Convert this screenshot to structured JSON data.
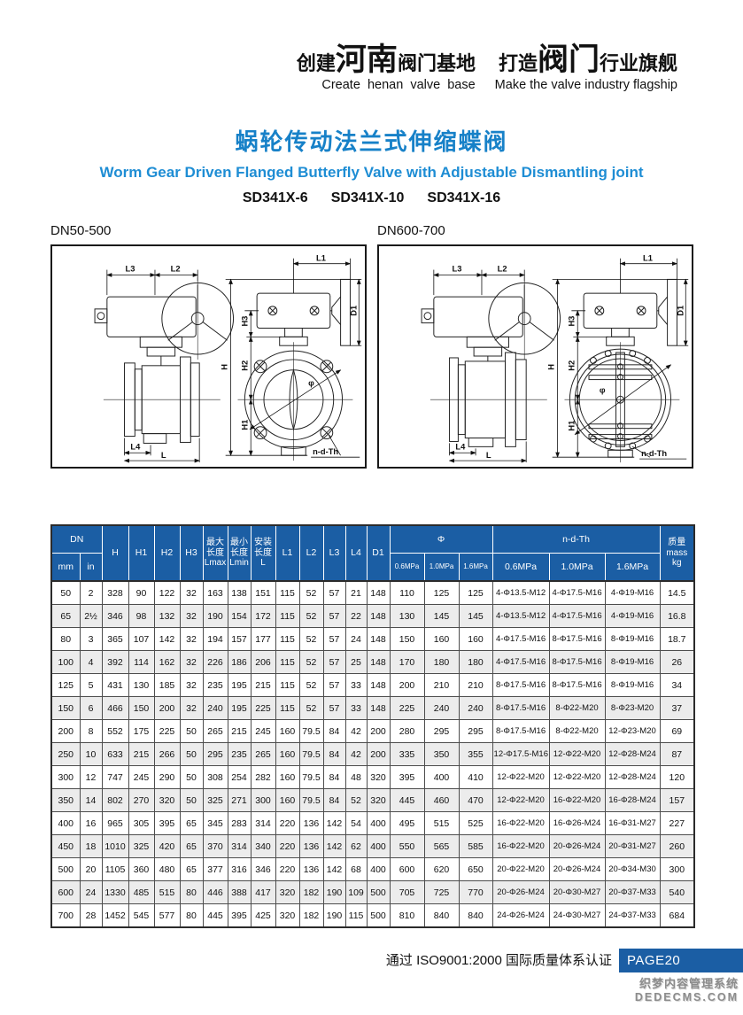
{
  "header": {
    "slogan": {
      "p1": "创建",
      "p2": "河南",
      "p3": "阀门基地",
      "p4": "打造",
      "p5": "阀门",
      "p6": "行业旗舰"
    },
    "slogan_en_left": "Create  henan  valve  base",
    "slogan_en_right": "Make the valve industry flagship"
  },
  "title": {
    "cn": "蜗轮传动法兰式伸缩蝶阀",
    "en": "Worm Gear Driven Flanged Butterfly Valve with Adjustable Dismantling joint",
    "models": [
      "SD341X-6",
      "SD341X-10",
      "SD341X-16"
    ]
  },
  "diagrams": {
    "left_label": "DN50-500",
    "right_label": "DN600-700",
    "dims": {
      "l": "L",
      "l1": "L1",
      "l2": "L2",
      "l3": "L3",
      "l4": "L4",
      "h": "H",
      "h1": "H1",
      "h2": "H2",
      "h3": "H3",
      "d1": "D1",
      "phi": "φ",
      "ndth": "n-d-Th"
    }
  },
  "table": {
    "header": {
      "dn": "DN",
      "mm": "mm",
      "in": "in",
      "h": "H",
      "h1": "H1",
      "h2": "H2",
      "h3": "H3",
      "lmax": "最大\n长度\nLmax",
      "lmin": "最小\n长度\nLmin",
      "l_inst": "安装\n长度\nL",
      "l1": "L1",
      "l2": "L2",
      "l3": "L3",
      "l4": "L4",
      "d1": "D1",
      "phi": "Φ",
      "ndth": "n-d-Th",
      "pressures": [
        "0.6MPa",
        "1.0MPa",
        "1.6MPa"
      ],
      "mass": "质量\nmass\nkg"
    },
    "rows": [
      [
        "50",
        "2",
        "328",
        "90",
        "122",
        "32",
        "163",
        "138",
        "151",
        "115",
        "52",
        "57",
        "21",
        "148",
        "110",
        "125",
        "125",
        "4-Φ13.5-M12",
        "4-Φ17.5-M16",
        "4-Φ19-M16",
        "14.5"
      ],
      [
        "65",
        "2½",
        "346",
        "98",
        "132",
        "32",
        "190",
        "154",
        "172",
        "115",
        "52",
        "57",
        "22",
        "148",
        "130",
        "145",
        "145",
        "4-Φ13.5-M12",
        "4-Φ17.5-M16",
        "4-Φ19-M16",
        "16.8"
      ],
      [
        "80",
        "3",
        "365",
        "107",
        "142",
        "32",
        "194",
        "157",
        "177",
        "115",
        "52",
        "57",
        "24",
        "148",
        "150",
        "160",
        "160",
        "4-Φ17.5-M16",
        "8-Φ17.5-M16",
        "8-Φ19-M16",
        "18.7"
      ],
      [
        "100",
        "4",
        "392",
        "114",
        "162",
        "32",
        "226",
        "186",
        "206",
        "115",
        "52",
        "57",
        "25",
        "148",
        "170",
        "180",
        "180",
        "4-Φ17.5-M16",
        "8-Φ17.5-M16",
        "8-Φ19-M16",
        "26"
      ],
      [
        "125",
        "5",
        "431",
        "130",
        "185",
        "32",
        "235",
        "195",
        "215",
        "115",
        "52",
        "57",
        "33",
        "148",
        "200",
        "210",
        "210",
        "8-Φ17.5-M16",
        "8-Φ17.5-M16",
        "8-Φ19-M16",
        "34"
      ],
      [
        "150",
        "6",
        "466",
        "150",
        "200",
        "32",
        "240",
        "195",
        "225",
        "115",
        "52",
        "57",
        "33",
        "148",
        "225",
        "240",
        "240",
        "8-Φ17.5-M16",
        "8-Φ22-M20",
        "8-Φ23-M20",
        "37"
      ],
      [
        "200",
        "8",
        "552",
        "175",
        "225",
        "50",
        "265",
        "215",
        "245",
        "160",
        "79.5",
        "84",
        "42",
        "200",
        "280",
        "295",
        "295",
        "8-Φ17.5-M16",
        "8-Φ22-M20",
        "12-Φ23-M20",
        "69"
      ],
      [
        "250",
        "10",
        "633",
        "215",
        "266",
        "50",
        "295",
        "235",
        "265",
        "160",
        "79.5",
        "84",
        "42",
        "200",
        "335",
        "350",
        "355",
        "12-Φ17.5-M16",
        "12-Φ22-M20",
        "12-Φ28-M24",
        "87"
      ],
      [
        "300",
        "12",
        "747",
        "245",
        "290",
        "50",
        "308",
        "254",
        "282",
        "160",
        "79.5",
        "84",
        "48",
        "320",
        "395",
        "400",
        "410",
        "12-Φ22-M20",
        "12-Φ22-M20",
        "12-Φ28-M24",
        "120"
      ],
      [
        "350",
        "14",
        "802",
        "270",
        "320",
        "50",
        "325",
        "271",
        "300",
        "160",
        "79.5",
        "84",
        "52",
        "320",
        "445",
        "460",
        "470",
        "12-Φ22-M20",
        "16-Φ22-M20",
        "16-Φ28-M24",
        "157"
      ],
      [
        "400",
        "16",
        "965",
        "305",
        "395",
        "65",
        "345",
        "283",
        "314",
        "220",
        "136",
        "142",
        "54",
        "400",
        "495",
        "515",
        "525",
        "16-Φ22-M20",
        "16-Φ26-M24",
        "16-Φ31-M27",
        "227"
      ],
      [
        "450",
        "18",
        "1010",
        "325",
        "420",
        "65",
        "370",
        "314",
        "340",
        "220",
        "136",
        "142",
        "62",
        "400",
        "550",
        "565",
        "585",
        "16-Φ22-M20",
        "20-Φ26-M24",
        "20-Φ31-M27",
        "260"
      ],
      [
        "500",
        "20",
        "1105",
        "360",
        "480",
        "65",
        "377",
        "316",
        "346",
        "220",
        "136",
        "142",
        "68",
        "400",
        "600",
        "620",
        "650",
        "20-Φ22-M20",
        "20-Φ26-M24",
        "20-Φ34-M30",
        "300"
      ],
      [
        "600",
        "24",
        "1330",
        "485",
        "515",
        "80",
        "446",
        "388",
        "417",
        "320",
        "182",
        "190",
        "109",
        "500",
        "705",
        "725",
        "770",
        "20-Φ26-M24",
        "20-Φ30-M27",
        "20-Φ37-M33",
        "540"
      ],
      [
        "700",
        "28",
        "1452",
        "545",
        "577",
        "80",
        "445",
        "395",
        "425",
        "320",
        "182",
        "190",
        "115",
        "500",
        "810",
        "840",
        "840",
        "24-Φ26-M24",
        "24-Φ30-M27",
        "24-Φ37-M33",
        "684"
      ]
    ]
  },
  "footer": {
    "cert": "通过 ISO9001:2000 国际质量体系认证",
    "page": "PAGE20",
    "watermark1": "织梦内容管理系统",
    "watermark2": "DEDECMS.COM"
  },
  "colors": {
    "header_blue": "#1b5ea4",
    "badge_blue": "#1b5ea4",
    "title_cn_blue": "#1781c8",
    "title_en_blue": "#1e8dd4",
    "alt_row": "#ececec"
  }
}
